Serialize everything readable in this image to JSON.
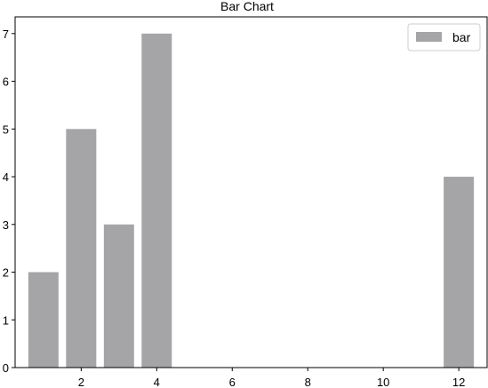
{
  "chart_data": {
    "type": "bar",
    "title": "Bar Chart",
    "xlabel": "",
    "ylabel": "",
    "x": [
      1,
      2,
      3,
      4,
      12
    ],
    "series": [
      {
        "name": "bar",
        "values": [
          2,
          5,
          3,
          7,
          4
        ],
        "color": "#a5a5a8"
      }
    ],
    "bar_width": 0.8,
    "xlim": [
      0.25,
      12.75
    ],
    "ylim": [
      0,
      7.35
    ],
    "x_ticks": [
      2,
      4,
      6,
      8,
      10,
      12
    ],
    "y_ticks": [
      0,
      1,
      2,
      3,
      4,
      5,
      6,
      7
    ],
    "grid": false,
    "legend_position": "top-right"
  }
}
